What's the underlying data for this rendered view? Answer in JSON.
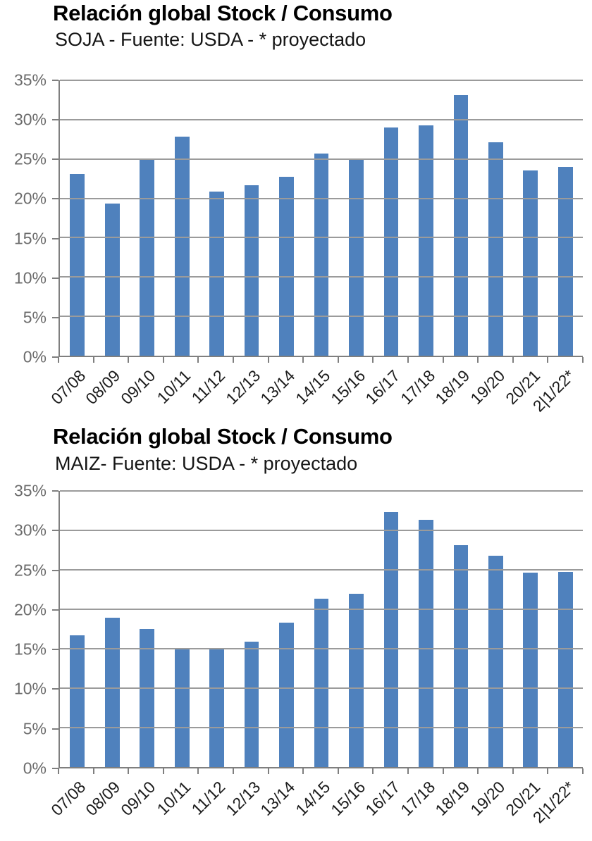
{
  "chart_data": [
    {
      "type": "bar",
      "title": "Relación global Stock / Consumo",
      "subtitle": "SOJA - Fuente: USDA - * proyectado",
      "categories": [
        "07/08",
        "08/09",
        "09/10",
        "10/11",
        "11/12",
        "12/13",
        "13/14",
        "14/15",
        "15/16",
        "16/17",
        "17/18",
        "18/19",
        "19/20",
        "20/21",
        "2|1/22*"
      ],
      "values": [
        23.1,
        19.3,
        25.1,
        27.8,
        20.9,
        21.7,
        22.7,
        25.7,
        25.1,
        29.0,
        29.3,
        33.1,
        27.1,
        23.5,
        24.0
      ],
      "unit": "%",
      "xlabel": "",
      "ylabel": "",
      "ylim": [
        0,
        35
      ],
      "ytick_step": 5,
      "ytick_labels": [
        "35%",
        "30%",
        "25%",
        "20%",
        "15%",
        "10%",
        "5%",
        "0%"
      ],
      "grid": true,
      "legend": false,
      "bar_color": "#4f81bd",
      "gridline_color": "#9b9b9b",
      "axis_color": "#7f7f7f"
    },
    {
      "type": "bar",
      "title": "Relación global Stock / Consumo",
      "subtitle": "MAIZ- Fuente: USDA - * proyectado",
      "categories": [
        "07/08",
        "08/09",
        "09/10",
        "10/11",
        "11/12",
        "12/13",
        "13/14",
        "14/15",
        "15/16",
        "16/17",
        "17/18",
        "18/19",
        "19/20",
        "20/21",
        "2|1/22*"
      ],
      "values": [
        16.7,
        18.9,
        17.5,
        15.0,
        15.0,
        15.9,
        18.3,
        21.3,
        22.0,
        32.3,
        31.3,
        28.1,
        26.8,
        24.6,
        24.7
      ],
      "unit": "%",
      "xlabel": "",
      "ylabel": "",
      "ylim": [
        0,
        35
      ],
      "ytick_step": 5,
      "ytick_labels": [
        "35%",
        "30%",
        "25%",
        "20%",
        "15%",
        "10%",
        "5%",
        "0%"
      ],
      "grid": true,
      "legend": false,
      "bar_color": "#4f81bd",
      "gridline_color": "#9b9b9b",
      "axis_color": "#7f7f7f"
    }
  ]
}
